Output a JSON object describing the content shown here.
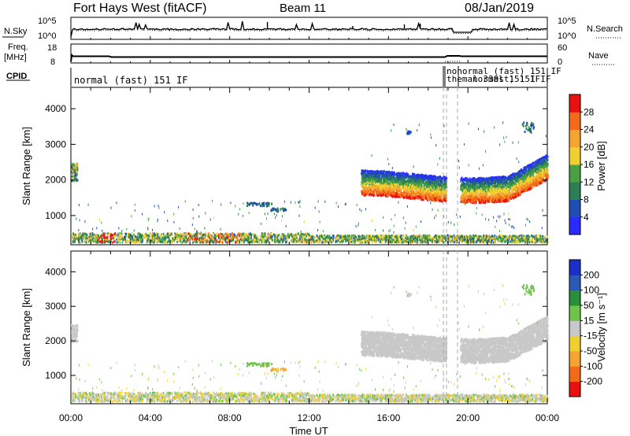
{
  "header": {
    "station": "Fort Hays West (fitACF)",
    "beam": "Beam 11",
    "date": "08/Jan/2019"
  },
  "strips": {
    "nsky_label": "N.Sky",
    "nsky_ticks": [
      "10^5",
      "10^0"
    ],
    "nsearch_label": "N.Search",
    "nsearch_ticks": [
      "10^5",
      "10^0"
    ],
    "freq_label": "Freq.",
    "freq_unit": "[MHz]",
    "freq_ticks": [
      "18",
      "8"
    ],
    "nave_label": "Nave",
    "nave_ticks": [
      "60",
      "0"
    ],
    "cpid_label": "CPID",
    "cpid_text_main": "normal (fast) 151 IF",
    "cpid_text_a": "nonormal (fast) 151 IF",
    "cpid_text_b": "themal 330st) 151 IF",
    "cpid_text_c": "normal 151 IF"
  },
  "colors": {
    "power": [
      "#2a2aff",
      "#1f4fb5",
      "#2c7e54",
      "#4aa044",
      "#f0d030",
      "#f4a430",
      "#f36a18",
      "#e81010"
    ],
    "velocity": [
      "#e81010",
      "#f36a18",
      "#f4a430",
      "#f0d030",
      "#c8c8c8",
      "#6fc44a",
      "#2a8f3a",
      "#2a5ab5",
      "#1a30c8"
    ]
  },
  "chart_data": [
    {
      "type": "heatmap",
      "title": "",
      "xlabel": "",
      "ylabel": "Slant Range [km]",
      "x_ticks": [
        "00:00",
        "04:00",
        "08:00",
        "12:00",
        "16:00",
        "20:00",
        "00:00"
      ],
      "xlim_hours": [
        0,
        24
      ],
      "ylim": [
        180,
        4600
      ],
      "y_ticks": [
        1000,
        2000,
        3000,
        4000
      ],
      "colorbar": {
        "label": "Power [dB]",
        "ticks": [
          "4",
          "8",
          "12",
          "16",
          "20",
          "24",
          "28"
        ],
        "range": [
          0,
          30
        ]
      },
      "grid": false
    },
    {
      "type": "heatmap",
      "title": "",
      "xlabel": "Time UT",
      "ylabel": "Slant Range [km]",
      "x_ticks": [
        "00:00",
        "04:00",
        "08:00",
        "12:00",
        "16:00",
        "20:00",
        "00:00"
      ],
      "xlim_hours": [
        0,
        24
      ],
      "ylim": [
        180,
        4600
      ],
      "y_ticks": [
        1000,
        2000,
        3000,
        4000
      ],
      "colorbar": {
        "label": "Velocity [m s⁻¹]",
        "ticks": [
          "200",
          "100",
          "50",
          "15",
          "-15",
          "-50",
          "-100",
          "-200"
        ],
        "range": [
          -250,
          250
        ]
      },
      "grid": false
    }
  ]
}
